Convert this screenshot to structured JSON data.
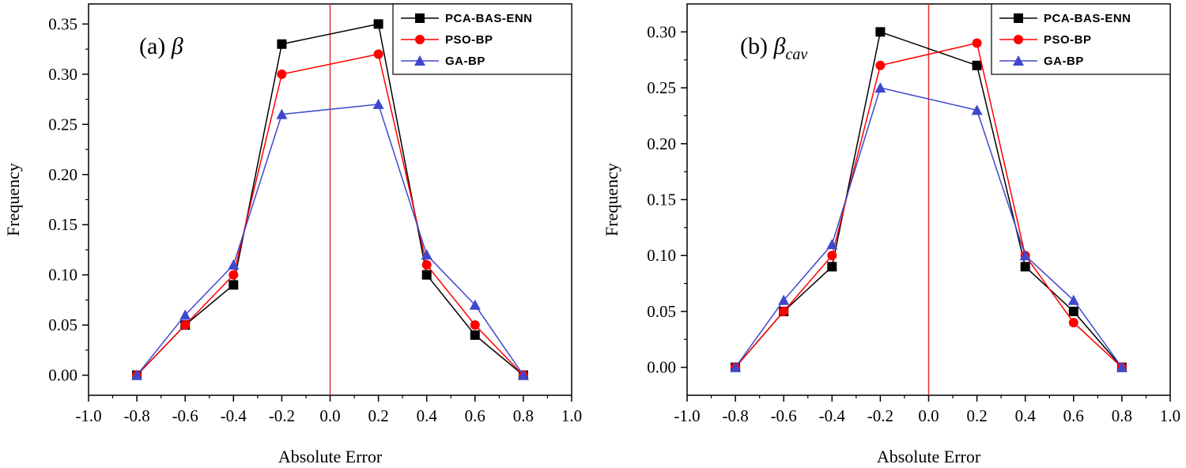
{
  "chart_data": [
    {
      "type": "line",
      "panel_label": "(a)",
      "symbol": "β",
      "symbol_sub": "",
      "xlabel": "Absolute Error",
      "ylabel": "Frequency",
      "xlim": [
        -1.0,
        1.0
      ],
      "ylim": [
        -0.02,
        0.37
      ],
      "xticks": [
        "-1.0",
        "-0.8",
        "-0.6",
        "-0.4",
        "-0.2",
        "0.0",
        "0.2",
        "0.4",
        "0.6",
        "0.8",
        "1.0"
      ],
      "yticks": [
        "0.00",
        "0.05",
        "0.10",
        "0.15",
        "0.20",
        "0.25",
        "0.30",
        "0.35"
      ],
      "x": [
        -0.8,
        -0.6,
        -0.4,
        -0.2,
        0.2,
        0.4,
        0.6,
        0.8
      ],
      "vline_x": 0.0,
      "legend_position": "top-right",
      "series": [
        {
          "name": "PCA-BAS-ENN",
          "color": "#000000",
          "marker": "square",
          "values": [
            0.0,
            0.05,
            0.09,
            0.33,
            0.35,
            0.1,
            0.04,
            0.0
          ]
        },
        {
          "name": "PSO-BP",
          "color": "#ff0000",
          "marker": "circle",
          "values": [
            0.0,
            0.05,
            0.1,
            0.3,
            0.32,
            0.11,
            0.05,
            0.0
          ]
        },
        {
          "name": "GA-BP",
          "color": "#3f48cc",
          "marker": "triangle",
          "values": [
            0.0,
            0.06,
            0.11,
            0.26,
            0.27,
            0.12,
            0.07,
            0.0
          ]
        }
      ]
    },
    {
      "type": "line",
      "panel_label": "(b)",
      "symbol": "β",
      "symbol_sub": "cav",
      "xlabel": "Absolute Error",
      "ylabel": "Frequency",
      "xlim": [
        -1.0,
        1.0
      ],
      "ylim": [
        -0.025,
        0.325
      ],
      "xticks": [
        "-1.0",
        "-0.8",
        "-0.6",
        "-0.4",
        "-0.2",
        "0.0",
        "0.2",
        "0.4",
        "0.6",
        "0.8",
        "1.0"
      ],
      "yticks": [
        "0.00",
        "0.05",
        "0.10",
        "0.15",
        "0.20",
        "0.25",
        "0.30"
      ],
      "x": [
        -0.8,
        -0.6,
        -0.4,
        -0.2,
        0.2,
        0.4,
        0.6,
        0.8
      ],
      "vline_x": 0.0,
      "legend_position": "top-right",
      "series": [
        {
          "name": "PCA-BAS-ENN",
          "color": "#000000",
          "marker": "square",
          "values": [
            0.0,
            0.05,
            0.09,
            0.3,
            0.27,
            0.09,
            0.05,
            0.0
          ]
        },
        {
          "name": "PSO-BP",
          "color": "#ff0000",
          "marker": "circle",
          "values": [
            0.0,
            0.05,
            0.1,
            0.27,
            0.29,
            0.1,
            0.04,
            0.0
          ]
        },
        {
          "name": "GA-BP",
          "color": "#3f48cc",
          "marker": "triangle",
          "values": [
            0.0,
            0.06,
            0.11,
            0.25,
            0.23,
            0.1,
            0.06,
            0.0
          ]
        }
      ]
    }
  ]
}
